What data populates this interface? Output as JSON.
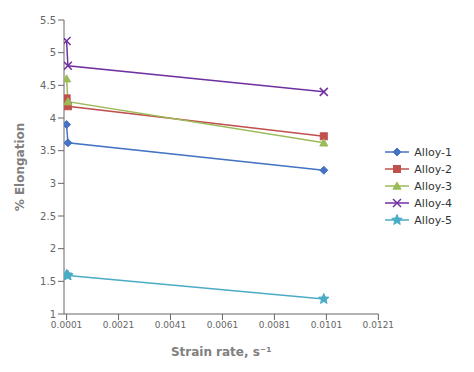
{
  "chart_data": {
    "type": "line",
    "xlabel": "Strain rate, s⁻¹",
    "ylabel": "% Elongation",
    "x": [
      0.0001,
      0.00015,
      0.01
    ],
    "xlim": [
      0.0,
      0.0121
    ],
    "xticks": [
      0.0001,
      0.0021,
      0.0041,
      0.0061,
      0.0081,
      0.0101,
      0.0121
    ],
    "ylim": [
      1.0,
      5.5
    ],
    "yticks": [
      1,
      1.5,
      2,
      2.5,
      3,
      3.5,
      4,
      4.5,
      5,
      5.5
    ],
    "grid": false,
    "legend": "right",
    "series": [
      {
        "name": "Alloy-1",
        "color": "#4472C4",
        "marker": "diamond",
        "values": [
          3.9,
          3.62,
          3.2
        ]
      },
      {
        "name": "Alloy-2",
        "color": "#C0504D",
        "marker": "square",
        "values": [
          4.3,
          4.18,
          3.72
        ]
      },
      {
        "name": "Alloy-3",
        "color": "#9BBB59",
        "marker": "triangle",
        "values": [
          4.6,
          4.25,
          3.62
        ]
      },
      {
        "name": "Alloy-4",
        "color": "#7030A0",
        "marker": "x",
        "values": [
          5.18,
          4.8,
          4.4
        ]
      },
      {
        "name": "Alloy-5",
        "color": "#4BACC6",
        "marker": "star",
        "values": [
          1.6,
          1.59,
          1.23
        ]
      }
    ]
  }
}
